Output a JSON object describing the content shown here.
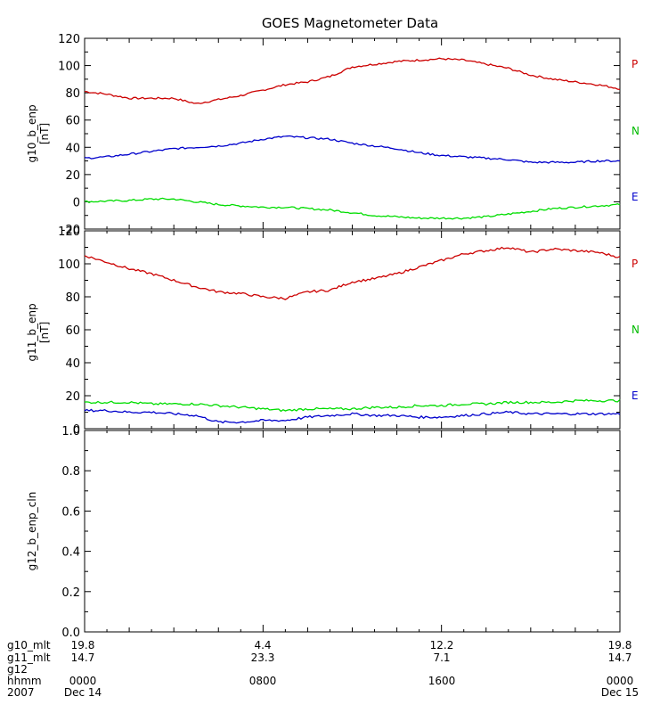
{
  "chart_data": [
    {
      "type": "line",
      "title": "GOES Magnetometer Data",
      "ylabel": "g10_b_enp",
      "yunit": "[nT]",
      "ylim": [
        -20,
        120
      ],
      "yticks": [
        -20,
        0,
        20,
        40,
        60,
        80,
        100,
        120
      ],
      "x_hours": [
        0,
        1,
        2,
        3,
        4,
        5,
        6,
        7,
        8,
        9,
        10,
        11,
        12,
        13,
        14,
        15,
        16,
        17,
        18,
        19,
        20,
        21,
        22,
        23,
        24
      ],
      "series": [
        {
          "name": "P",
          "color": "#cc0000",
          "values": [
            81,
            79,
            76,
            76,
            76,
            72,
            75,
            78,
            82,
            86,
            88,
            92,
            99,
            101,
            103,
            104,
            105,
            104,
            101,
            98,
            93,
            90,
            88,
            86,
            83
          ]
        },
        {
          "name": "N",
          "color": "#00dd00",
          "values": [
            0,
            0.5,
            1,
            2,
            2,
            0,
            -2,
            -3,
            -4,
            -4,
            -5,
            -6,
            -8,
            -10,
            -11,
            -12,
            -12,
            -12,
            -11,
            -9,
            -7,
            -5,
            -4,
            -3,
            -2
          ]
        },
        {
          "name": "E",
          "color": "#0000cc",
          "values": [
            32,
            33,
            35,
            37,
            39,
            40,
            41,
            43,
            46,
            48,
            47,
            46,
            43,
            41,
            39,
            36,
            34,
            33,
            32,
            31,
            29,
            29,
            29,
            30,
            30
          ]
        }
      ]
    },
    {
      "type": "line",
      "ylabel": "g11_b_enp",
      "yunit": "[nT]",
      "ylim": [
        0,
        120
      ],
      "yticks": [
        0,
        20,
        40,
        60,
        80,
        100,
        120
      ],
      "x_hours": [
        0,
        1,
        2,
        3,
        4,
        5,
        6,
        7,
        8,
        9,
        10,
        11,
        12,
        13,
        14,
        15,
        16,
        17,
        18,
        19,
        20,
        21,
        22,
        23,
        24
      ],
      "series": [
        {
          "name": "P",
          "color": "#cc0000",
          "values": [
            105,
            101,
            97,
            94,
            90,
            86,
            83,
            82,
            80,
            79,
            83,
            84,
            89,
            91,
            94,
            98,
            102,
            106,
            108,
            110,
            107,
            109,
            108,
            107,
            104
          ]
        },
        {
          "name": "N",
          "color": "#00dd00",
          "values": [
            16,
            16,
            16,
            15,
            15,
            15,
            14,
            13,
            12,
            11,
            12,
            12,
            12,
            13,
            13,
            14,
            14,
            15,
            15,
            16,
            16,
            16,
            17,
            17,
            17
          ]
        },
        {
          "name": "E",
          "color": "#0000cc",
          "values": [
            11,
            11,
            10,
            10,
            9,
            8,
            4,
            4,
            5,
            5,
            7,
            8,
            9,
            8,
            8,
            7,
            7,
            8,
            9,
            10,
            9,
            9,
            9,
            9,
            9
          ]
        }
      ]
    },
    {
      "type": "line",
      "ylabel": "g12_b_enp_cln",
      "ylim": [
        0.0,
        1.0
      ],
      "yticks": [
        "0.0",
        "0.2",
        "0.4",
        "0.6",
        "0.8",
        "1.0"
      ],
      "series": []
    }
  ],
  "axis_labels": {
    "rows": [
      "g10_mlt",
      "g11_mlt",
      "g12",
      "hhmm",
      "2007"
    ],
    "g10_mlt": [
      "19.8",
      "4.4",
      "12.2",
      "19.8"
    ],
    "g11_mlt": [
      "14.7",
      "23.3",
      "7.1",
      "14.7"
    ],
    "hhmm": [
      "0000",
      "0800",
      "1600",
      "0000"
    ],
    "dates": [
      "Dec 14",
      "Dec 15"
    ]
  }
}
